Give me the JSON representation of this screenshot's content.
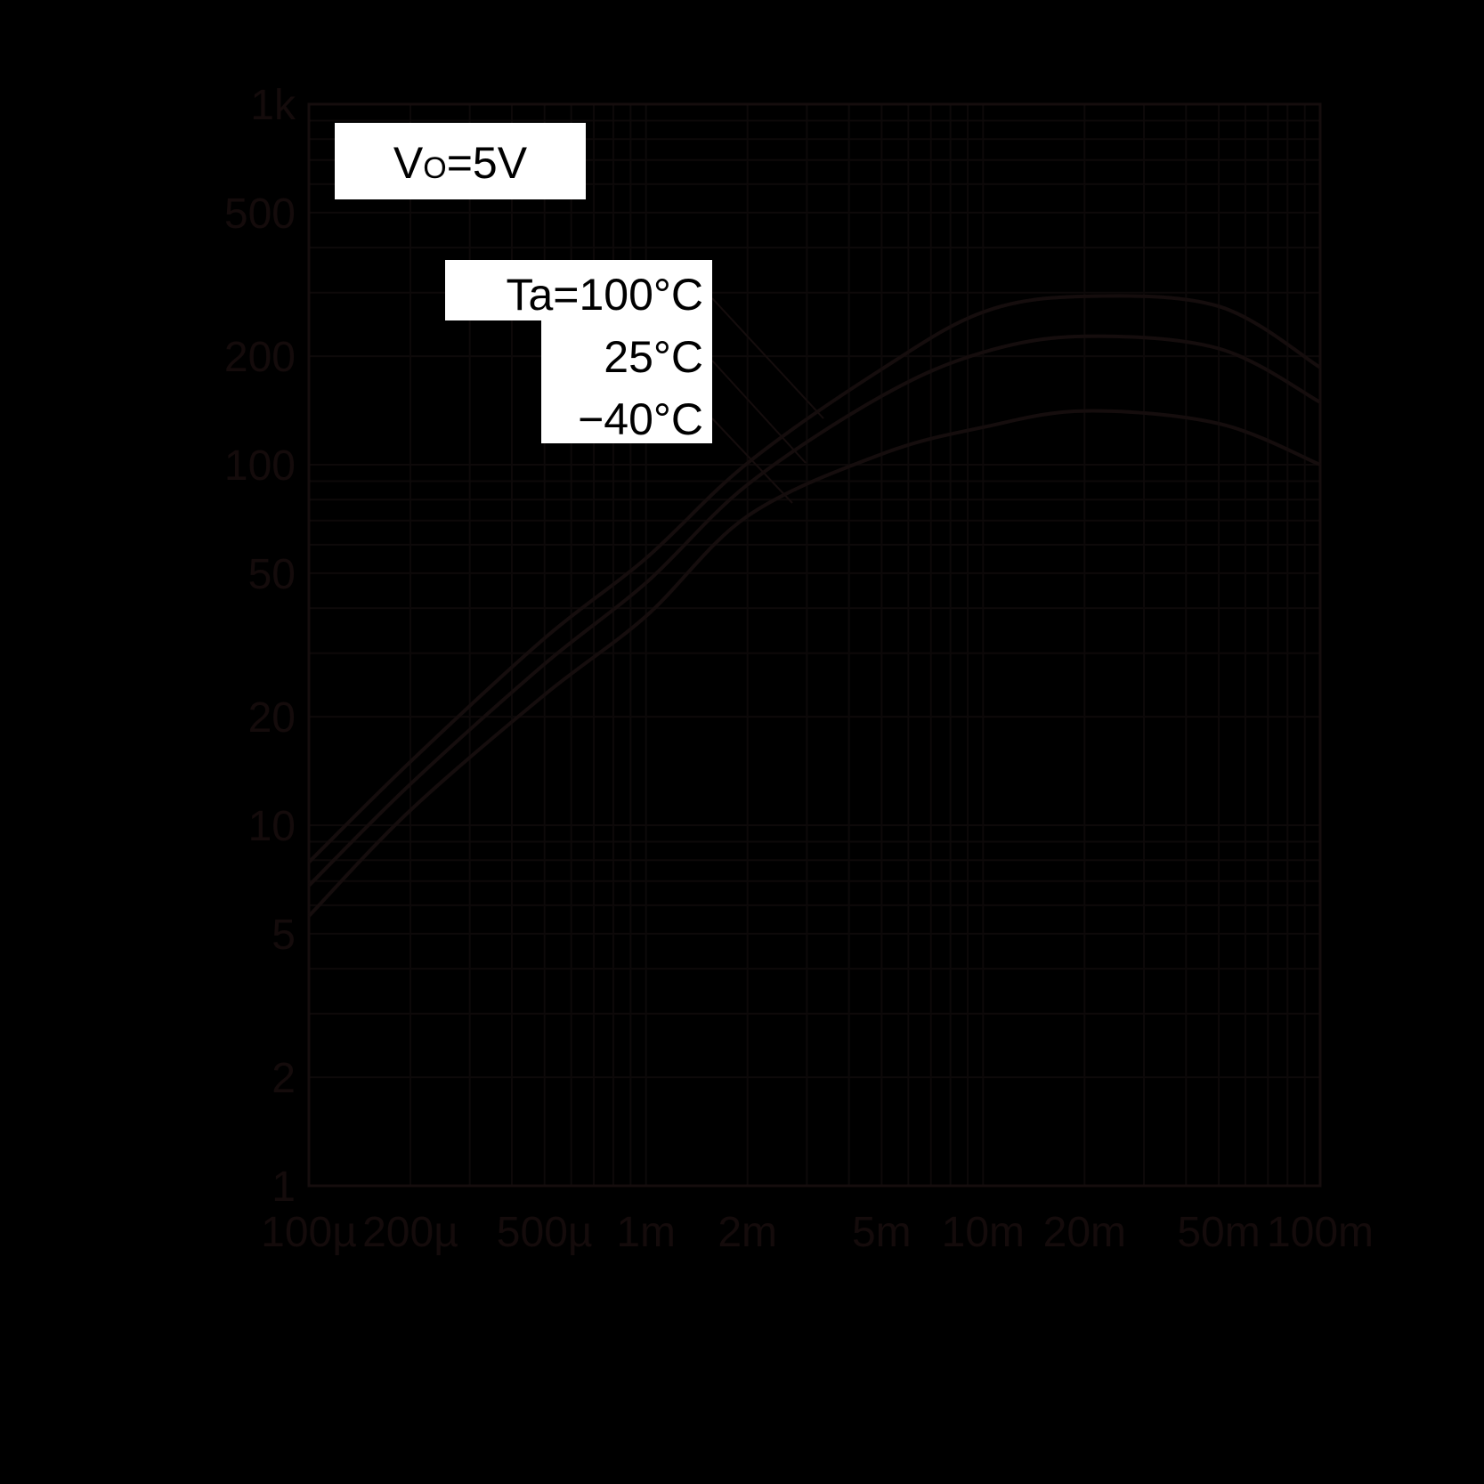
{
  "chart_data": {
    "type": "line",
    "title": "",
    "xlabel": "",
    "ylabel": "",
    "x_scale": "log",
    "y_scale": "log",
    "xlim": [
      0.0001,
      0.1
    ],
    "ylim": [
      1,
      1000
    ],
    "grid": true,
    "x_ticks": [
      {
        "v": 0.0001,
        "label": "100µ"
      },
      {
        "v": 0.0002,
        "label": "200µ"
      },
      {
        "v": 0.0005,
        "label": "500µ"
      },
      {
        "v": 0.001,
        "label": "1m"
      },
      {
        "v": 0.002,
        "label": "2m"
      },
      {
        "v": 0.005,
        "label": "5m"
      },
      {
        "v": 0.01,
        "label": "10m"
      },
      {
        "v": 0.02,
        "label": "20m"
      },
      {
        "v": 0.05,
        "label": "50m"
      },
      {
        "v": 0.1,
        "label": "100m"
      }
    ],
    "y_ticks": [
      {
        "v": 1,
        "label": "1"
      },
      {
        "v": 2,
        "label": "2"
      },
      {
        "v": 5,
        "label": "5"
      },
      {
        "v": 10,
        "label": "10"
      },
      {
        "v": 20,
        "label": "20"
      },
      {
        "v": 50,
        "label": "50"
      },
      {
        "v": 100,
        "label": "100"
      },
      {
        "v": 200,
        "label": "200"
      },
      {
        "v": 500,
        "label": "500"
      },
      {
        "v": 1000,
        "label": "1k"
      }
    ],
    "x": [
      0.0001,
      0.0002,
      0.0005,
      0.001,
      0.002,
      0.005,
      0.01,
      0.02,
      0.05,
      0.1
    ],
    "series": [
      {
        "name": "Ta=100°C",
        "values": [
          7.9,
          15,
          33,
          55,
          101,
          184,
          265,
          293,
          275,
          186
        ]
      },
      {
        "name": "25°C",
        "values": [
          6.8,
          13,
          28,
          47,
          88,
          155,
          205,
          227,
          210,
          149
        ]
      },
      {
        "name": "−40°C",
        "values": [
          5.6,
          11,
          23,
          38,
          72,
          107,
          127,
          141,
          130,
          100
        ]
      }
    ],
    "annotations": {
      "condition_label": "VO=5V",
      "condition_main": "V",
      "condition_sub": "O",
      "condition_rest": "=5V"
    },
    "colors": {
      "background": "#000000",
      "line": "#150d0d",
      "grid": "#0d0909",
      "label_box": "#ffffff"
    }
  }
}
